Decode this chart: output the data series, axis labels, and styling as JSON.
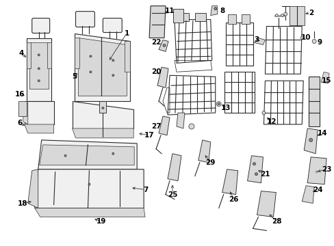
{
  "background_color": "#ffffff",
  "line_color": "#2a2a2a",
  "fill_color": "#f0f0f0",
  "fill_dark": "#d8d8d8",
  "figsize": [
    4.89,
    3.6
  ],
  "dpi": 100,
  "image_b64": ""
}
